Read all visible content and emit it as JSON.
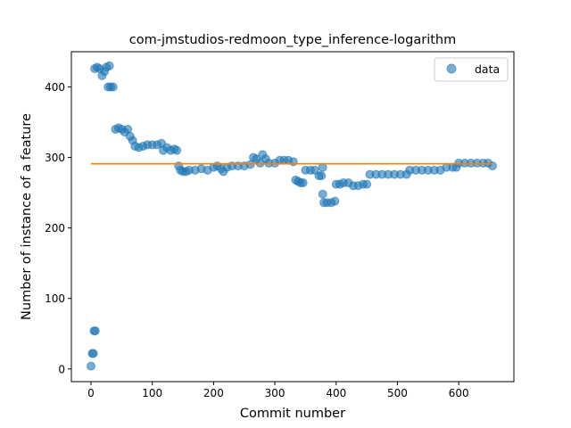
{
  "chart_data": {
    "type": "scatter",
    "title": "com-jmstudios-redmoon_type_inference-logarithm",
    "xlabel": "Commit number",
    "ylabel": "Number of instance of a feature",
    "xlim": [
      -32,
      690
    ],
    "ylim": [
      -18,
      450
    ],
    "xticks": [
      0,
      100,
      200,
      300,
      400,
      500,
      600
    ],
    "yticks": [
      0,
      100,
      200,
      300,
      400
    ],
    "grid": false,
    "legend": {
      "position": "top-right",
      "entries": [
        "data"
      ]
    },
    "colors": {
      "data": "#1f77b4",
      "fit": "#ff7f0e"
    },
    "series": [
      {
        "name": "data",
        "points": [
          [
            0,
            4
          ],
          [
            2,
            22
          ],
          [
            4,
            22
          ],
          [
            5,
            54
          ],
          [
            7,
            54
          ],
          [
            6,
            426
          ],
          [
            10,
            428
          ],
          [
            14,
            426
          ],
          [
            18,
            416
          ],
          [
            22,
            422
          ],
          [
            25,
            428
          ],
          [
            30,
            430
          ],
          [
            28,
            400
          ],
          [
            32,
            400
          ],
          [
            36,
            400
          ],
          [
            40,
            340
          ],
          [
            45,
            342
          ],
          [
            50,
            340
          ],
          [
            55,
            336
          ],
          [
            60,
            340
          ],
          [
            64,
            330
          ],
          [
            68,
            324
          ],
          [
            72,
            316
          ],
          [
            78,
            314
          ],
          [
            85,
            316
          ],
          [
            92,
            318
          ],
          [
            100,
            318
          ],
          [
            108,
            318
          ],
          [
            115,
            320
          ],
          [
            118,
            310
          ],
          [
            124,
            314
          ],
          [
            130,
            310
          ],
          [
            136,
            312
          ],
          [
            140,
            310
          ],
          [
            143,
            288
          ],
          [
            146,
            282
          ],
          [
            150,
            280
          ],
          [
            155,
            280
          ],
          [
            160,
            282
          ],
          [
            170,
            282
          ],
          [
            180,
            284
          ],
          [
            190,
            282
          ],
          [
            200,
            286
          ],
          [
            206,
            288
          ],
          [
            212,
            284
          ],
          [
            216,
            280
          ],
          [
            222,
            286
          ],
          [
            230,
            288
          ],
          [
            240,
            288
          ],
          [
            250,
            288
          ],
          [
            260,
            290
          ],
          [
            265,
            300
          ],
          [
            270,
            298
          ],
          [
            276,
            292
          ],
          [
            280,
            304
          ],
          [
            285,
            298
          ],
          [
            290,
            292
          ],
          [
            300,
            292
          ],
          [
            308,
            296
          ],
          [
            315,
            296
          ],
          [
            322,
            296
          ],
          [
            330,
            294
          ],
          [
            334,
            268
          ],
          [
            338,
            266
          ],
          [
            342,
            264
          ],
          [
            346,
            264
          ],
          [
            350,
            282
          ],
          [
            358,
            282
          ],
          [
            365,
            282
          ],
          [
            372,
            274
          ],
          [
            376,
            274
          ],
          [
            378,
            286
          ],
          [
            378,
            248
          ],
          [
            380,
            236
          ],
          [
            385,
            236
          ],
          [
            392,
            236
          ],
          [
            398,
            238
          ],
          [
            400,
            262
          ],
          [
            406,
            262
          ],
          [
            412,
            264
          ],
          [
            420,
            264
          ],
          [
            428,
            260
          ],
          [
            436,
            260
          ],
          [
            444,
            262
          ],
          [
            450,
            262
          ],
          [
            455,
            276
          ],
          [
            465,
            276
          ],
          [
            475,
            276
          ],
          [
            485,
            276
          ],
          [
            495,
            276
          ],
          [
            505,
            276
          ],
          [
            515,
            276
          ],
          [
            520,
            282
          ],
          [
            530,
            282
          ],
          [
            540,
            282
          ],
          [
            550,
            282
          ],
          [
            560,
            282
          ],
          [
            570,
            282
          ],
          [
            580,
            286
          ],
          [
            590,
            286
          ],
          [
            596,
            286
          ],
          [
            600,
            292
          ],
          [
            610,
            292
          ],
          [
            620,
            292
          ],
          [
            630,
            292
          ],
          [
            640,
            292
          ],
          [
            648,
            292
          ],
          [
            655,
            288
          ]
        ]
      },
      {
        "name": "",
        "line": [
          [
            0,
            291
          ],
          [
            655,
            291
          ]
        ]
      }
    ]
  }
}
